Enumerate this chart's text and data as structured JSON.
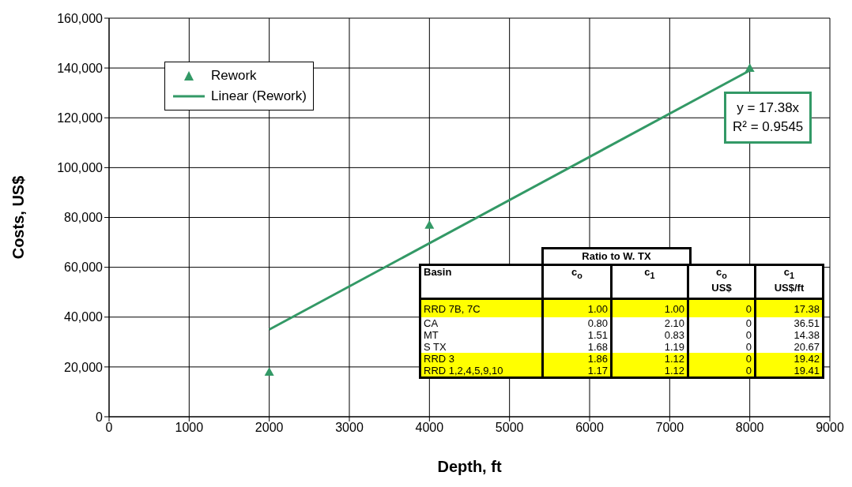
{
  "chart_data": {
    "type": "scatter",
    "xlabel": "Depth, ft",
    "ylabel": "Costs, US$",
    "xlim": [
      0,
      9000
    ],
    "xticks": [
      0,
      1000,
      2000,
      3000,
      4000,
      5000,
      6000,
      7000,
      8000,
      9000
    ],
    "ylim": [
      0,
      160000
    ],
    "yticks": [
      {
        "value": 0,
        "label": "0"
      },
      {
        "value": 20000,
        "label": "20,000"
      },
      {
        "value": 40000,
        "label": "40,000"
      },
      {
        "value": 60000,
        "label": "60,000"
      },
      {
        "value": 80000,
        "label": "80,000"
      },
      {
        "value": 100000,
        "label": "100,000"
      },
      {
        "value": 120000,
        "label": "120,000"
      },
      {
        "value": 140000,
        "label": "140,000"
      },
      {
        "value": 160000,
        "label": "160,000"
      }
    ],
    "grid": true,
    "legend": "top left",
    "series": [
      {
        "name": "Rework",
        "marker": "triangle",
        "color": "#339966",
        "x": [
          2000,
          4000,
          8000
        ],
        "values": [
          18000,
          77000,
          140000
        ]
      },
      {
        "name": "Linear (Rework)",
        "type": "line",
        "marker": "none",
        "color": "#339966",
        "x": [
          2000,
          8000
        ],
        "values": [
          35000,
          139000
        ]
      }
    ],
    "annotations": [
      "y = 17.38x",
      "R² = 0.9545",
      "Ratio to W. TX",
      "Basin",
      "c$_{o}$",
      "c$_{1}$",
      "c$_{o}$ US$",
      "c$_{1}$ US$/ft",
      "RRD 7B, 7C",
      "1.00",
      "1.00",
      "0",
      "17.38",
      "CA",
      "0.80",
      "2.10",
      "0",
      "36.51",
      "MT",
      "1.51",
      "0.83",
      "0",
      "14.38",
      "S TX",
      "1.68",
      "1.19",
      "0",
      "20.67",
      "RRD 3",
      "1.86",
      "1.12",
      "0",
      "19.42",
      "RRD 1,2,4,5,9,10",
      "1.17",
      "1.12",
      "0",
      "19.41"
    ]
  }
}
